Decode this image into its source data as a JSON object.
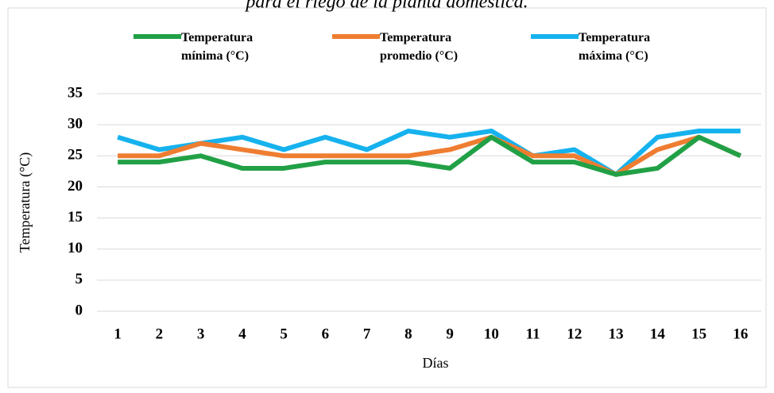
{
  "chart_data": {
    "type": "line",
    "title": "para el riego de la planta doméstica.",
    "x_label": "Días",
    "y_label": "Temperatura (°C)",
    "categories": [
      "1",
      "2",
      "3",
      "4",
      "5",
      "6",
      "7",
      "8",
      "9",
      "10",
      "11",
      "12",
      "13",
      "14",
      "15",
      "16"
    ],
    "series": [
      {
        "name": "Temperatura mínima (°C)",
        "color": "#21a046",
        "values": [
          24,
          24,
          25,
          23,
          23,
          24,
          24,
          24,
          23,
          28,
          24,
          24,
          22,
          23,
          28,
          25
        ]
      },
      {
        "name": "Temperatura promedio (°C)",
        "color": "#ef7d31",
        "values": [
          25,
          25,
          27,
          26,
          25,
          25,
          25,
          25,
          26,
          28,
          25,
          25,
          22,
          26,
          28,
          25
        ]
      },
      {
        "name": "Temperatura máxima (°C)",
        "color": "#16b2ee",
        "values": [
          28,
          26,
          27,
          28,
          26,
          28,
          26,
          29,
          28,
          29,
          25,
          26,
          22,
          28,
          29,
          29
        ]
      }
    ],
    "ylim": [
      0,
      35
    ],
    "yticks": [
      0,
      5,
      10,
      15,
      20,
      25,
      30,
      35
    ],
    "grid": true,
    "legend": "top"
  }
}
